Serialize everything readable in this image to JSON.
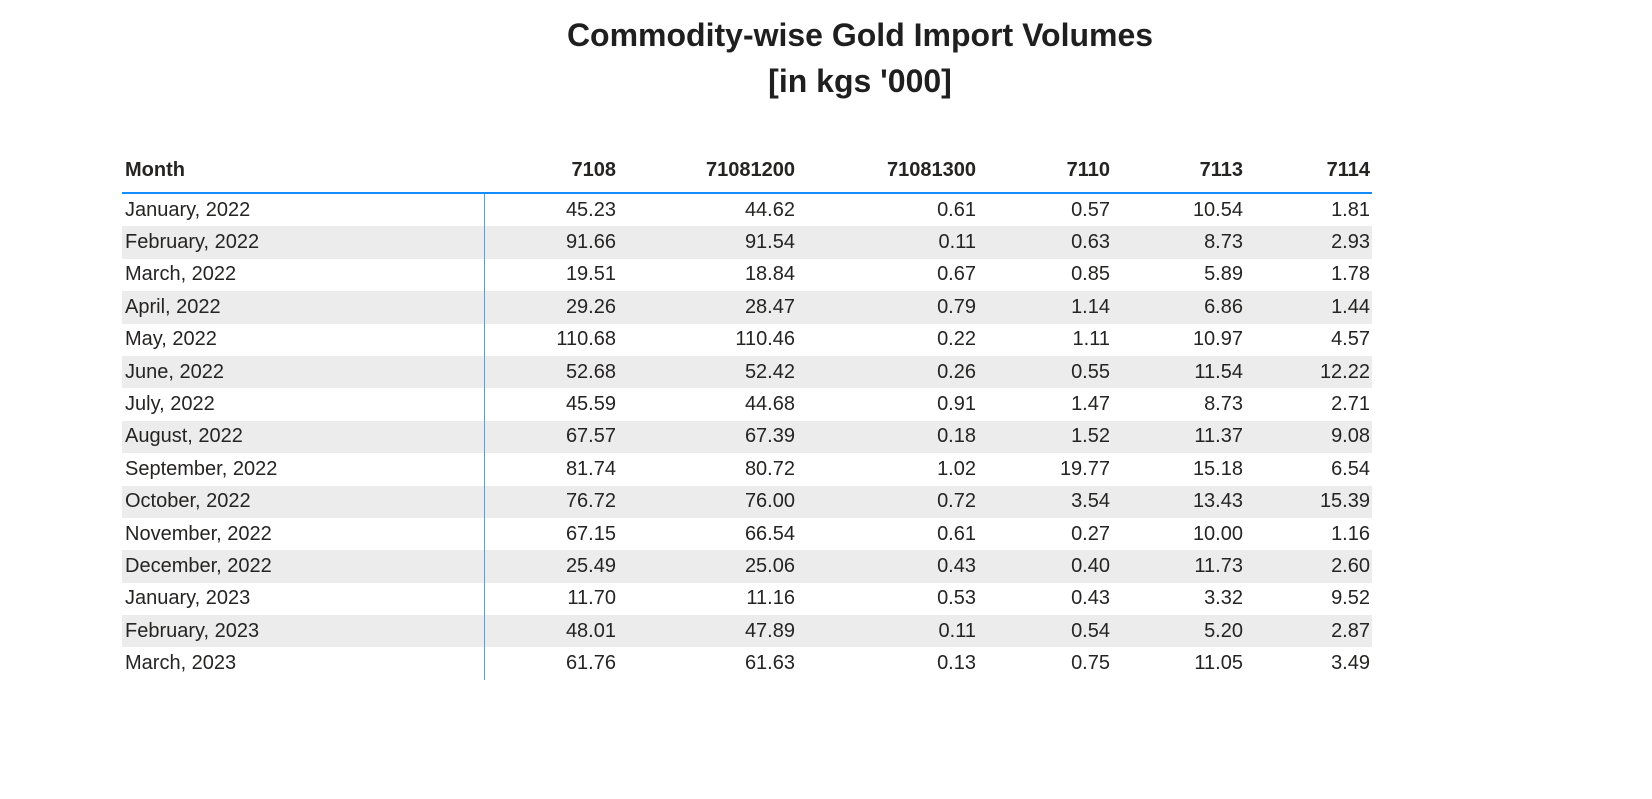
{
  "title": {
    "line1": "Commodity-wise Gold Import Volumes",
    "line2": "[in kgs '000]"
  },
  "chart_data": {
    "type": "table",
    "title": "Commodity-wise Gold Import Volumes [in kgs '000]",
    "columns": [
      "Month",
      "7108",
      "71081200",
      "71081300",
      "7110",
      "7113",
      "7114"
    ],
    "rows": [
      [
        "January, 2022",
        "45.23",
        "44.62",
        "0.61",
        "0.57",
        "10.54",
        "1.81"
      ],
      [
        "February, 2022",
        "91.66",
        "91.54",
        "0.11",
        "0.63",
        "8.73",
        "2.93"
      ],
      [
        "March, 2022",
        "19.51",
        "18.84",
        "0.67",
        "0.85",
        "5.89",
        "1.78"
      ],
      [
        "April, 2022",
        "29.26",
        "28.47",
        "0.79",
        "1.14",
        "6.86",
        "1.44"
      ],
      [
        "May, 2022",
        "110.68",
        "110.46",
        "0.22",
        "1.11",
        "10.97",
        "4.57"
      ],
      [
        "June, 2022",
        "52.68",
        "52.42",
        "0.26",
        "0.55",
        "11.54",
        "12.22"
      ],
      [
        "July, 2022",
        "45.59",
        "44.68",
        "0.91",
        "1.47",
        "8.73",
        "2.71"
      ],
      [
        "August, 2022",
        "67.57",
        "67.39",
        "0.18",
        "1.52",
        "11.37",
        "9.08"
      ],
      [
        "September, 2022",
        "81.74",
        "80.72",
        "1.02",
        "19.77",
        "15.18",
        "6.54"
      ],
      [
        "October, 2022",
        "76.72",
        "76.00",
        "0.72",
        "3.54",
        "13.43",
        "15.39"
      ],
      [
        "November, 2022",
        "67.15",
        "66.54",
        "0.61",
        "0.27",
        "10.00",
        "1.16"
      ],
      [
        "December, 2022",
        "25.49",
        "25.06",
        "0.43",
        "0.40",
        "11.73",
        "2.60"
      ],
      [
        "January, 2023",
        "11.70",
        "11.16",
        "0.53",
        "0.43",
        "3.32",
        "9.52"
      ],
      [
        "February, 2023",
        "48.01",
        "47.89",
        "0.11",
        "0.54",
        "5.20",
        "2.87"
      ],
      [
        "March, 2023",
        "61.76",
        "61.63",
        "0.13",
        "0.75",
        "11.05",
        "3.49"
      ]
    ]
  },
  "colors": {
    "header_underline_blue": "#118DFF",
    "column_divider_blue": "#4FA2E8",
    "alt_row_bg": "#ECECEC",
    "text": "#252423"
  }
}
